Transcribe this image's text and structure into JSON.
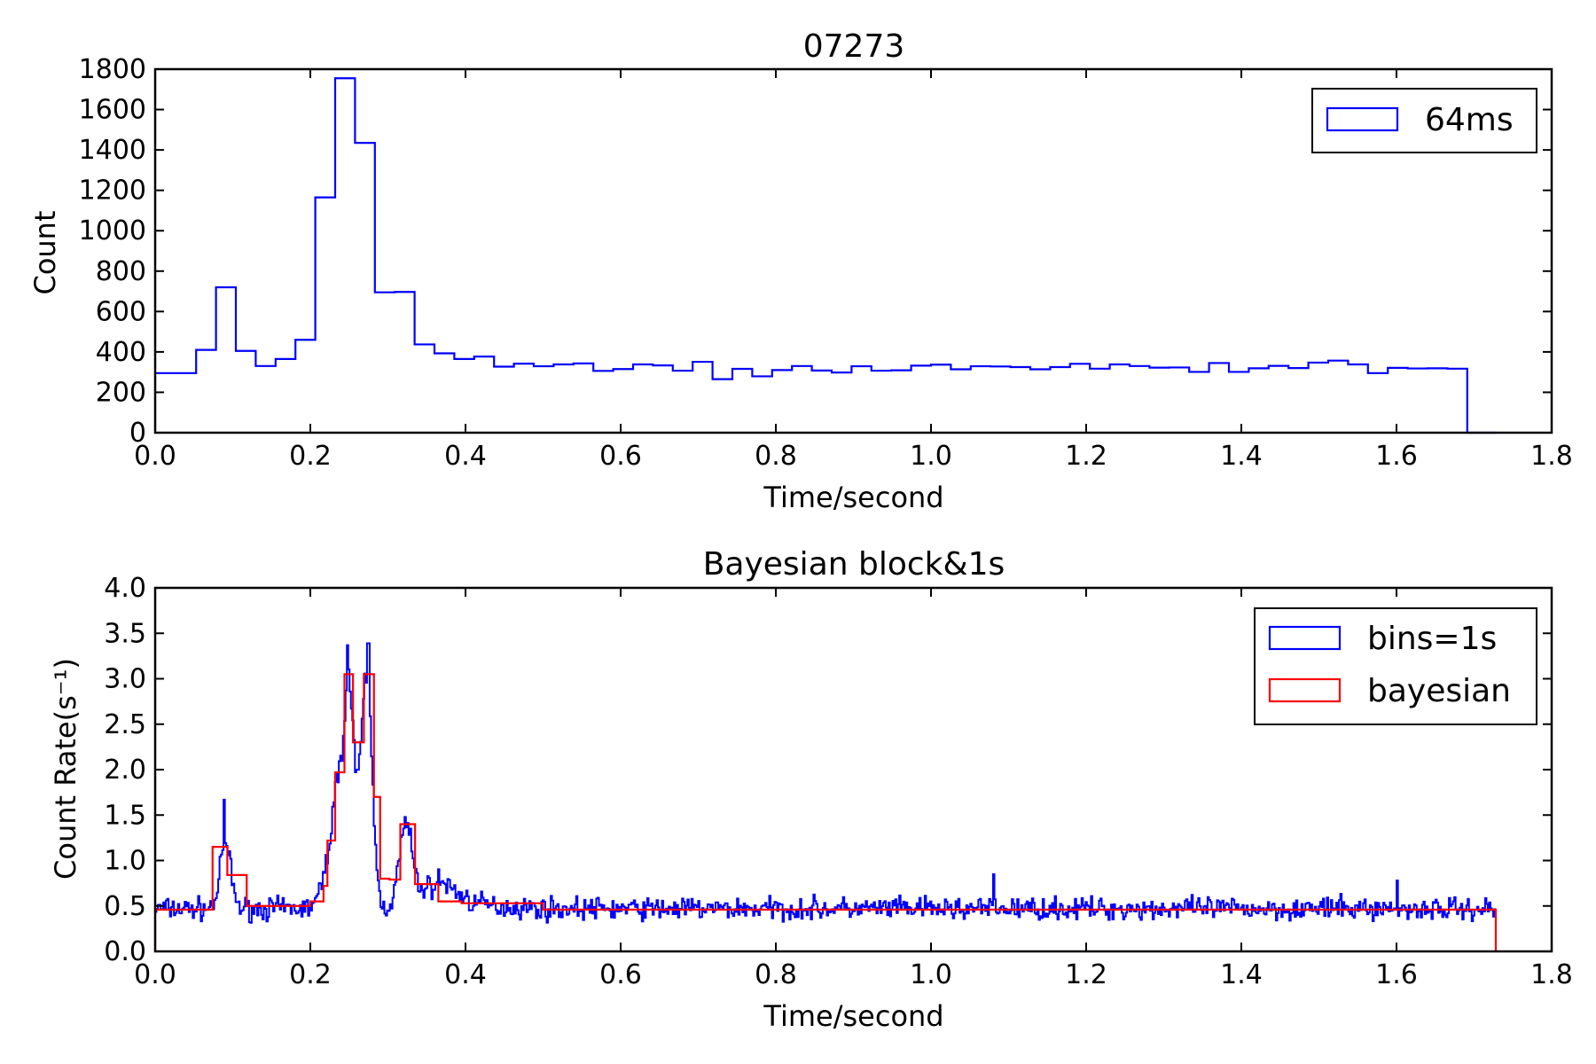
{
  "chart_data": [
    {
      "type": "line",
      "step": "post",
      "title": "07273",
      "xlabel": "Time/second",
      "ylabel": "Count",
      "xlim": [
        0.0,
        1.8
      ],
      "ylim": [
        0,
        1800
      ],
      "xticks": [
        "0.0",
        "0.2",
        "0.4",
        "0.6",
        "0.8",
        "1.0",
        "1.2",
        "1.4",
        "1.6",
        "1.8"
      ],
      "yticks": [
        "0",
        "200",
        "400",
        "600",
        "800",
        "1000",
        "1200",
        "1400",
        "1600",
        "1800"
      ],
      "legend_position": "upper-right",
      "grid": false,
      "series": [
        {
          "name": "64ms",
          "color": "#0000ff",
          "bin_width": 0.0256,
          "end": 1.7288,
          "x": [
            0.0,
            0.0528,
            0.0784,
            0.104,
            0.1296,
            0.1552,
            0.1808,
            0.2064,
            0.232,
            0.2576,
            0.2832,
            0.3088,
            0.3344,
            0.36,
            0.3856,
            0.4112,
            0.4368,
            0.4624,
            0.488,
            0.5136,
            0.5392,
            0.5648,
            0.5904,
            0.616,
            0.6416,
            0.6672,
            0.6928,
            0.7184,
            0.744,
            0.7696,
            0.7952,
            0.8208,
            0.8464,
            0.872,
            0.8976,
            0.9232,
            0.9488,
            0.9744,
            1.0,
            1.0256,
            1.0512,
            1.0768,
            1.1024,
            1.128,
            1.1536,
            1.1792,
            1.2048,
            1.2304,
            1.256,
            1.2816,
            1.3072,
            1.3328,
            1.3584,
            1.384,
            1.4096,
            1.4352,
            1.4608,
            1.4864,
            1.512,
            1.5376,
            1.5632,
            1.5888,
            1.6144,
            1.64,
            1.6656,
            1.6912
          ],
          "y": [
            295,
            410,
            720,
            405,
            330,
            365,
            460,
            1165,
            1755,
            1435,
            695,
            697,
            437,
            393,
            365,
            377,
            327,
            342,
            329,
            338,
            343,
            306,
            315,
            338,
            333,
            307,
            351,
            265,
            316,
            279,
            310,
            330,
            308,
            298,
            329,
            307,
            309,
            332,
            337,
            314,
            329,
            328,
            325,
            314,
            325,
            341,
            317,
            338,
            330,
            322,
            323,
            301,
            345,
            301,
            319,
            331,
            320,
            347,
            357,
            338,
            295,
            321,
            318,
            319,
            317,
            0
          ]
        }
      ]
    },
    {
      "type": "line",
      "step": "post",
      "title": "Bayesian block&1s",
      "xlabel": "Time/second",
      "ylabel": "Count Rate(s⁻¹)",
      "xlim": [
        0.0,
        1.8
      ],
      "ylim": [
        0.0,
        4.0
      ],
      "xticks": [
        "0.0",
        "0.2",
        "0.4",
        "0.6",
        "0.8",
        "1.0",
        "1.2",
        "1.4",
        "1.6",
        "1.8"
      ],
      "yticks": [
        "0.0",
        "0.5",
        "1.0",
        "1.5",
        "2.0",
        "2.5",
        "3.0",
        "3.5",
        "4.0"
      ],
      "legend_position": "upper-right",
      "grid": false,
      "series": [
        {
          "name": "bins=1s",
          "color": "#0000ff",
          "x_start": 0.0,
          "x_end": 1.728,
          "peaks": [
            {
              "center": 0.09,
              "amplitude": 0.68,
              "sigma": 0.007
            },
            {
              "center": 0.24,
              "amplitude": 1.5,
              "sigma": 0.014
            },
            {
              "center": 0.272,
              "amplitude": 2.45,
              "sigma": 0.007
            },
            {
              "center": 0.25,
              "amplitude": 1.3,
              "sigma": 0.006
            },
            {
              "center": 0.322,
              "amplitude": 0.85,
              "sigma": 0.008
            },
            {
              "center": 0.36,
              "amplitude": 0.25,
              "sigma": 0.025
            }
          ],
          "baseline": 0.47,
          "noise_amplitude": 0.12,
          "notable_spikes": [
            {
              "x": 0.088,
              "y": 1.67
            },
            {
              "x": 0.247,
              "y": 3.37
            },
            {
              "x": 0.274,
              "y": 3.39
            },
            {
              "x": 1.08,
              "y": 0.85
            },
            {
              "x": 1.6,
              "y": 0.78
            }
          ]
        },
        {
          "name": "bayesian",
          "color": "#ff0000",
          "end": 1.728,
          "x": [
            0.0,
            0.074,
            0.093,
            0.11,
            0.118,
            0.2,
            0.217,
            0.222,
            0.232,
            0.244,
            0.255,
            0.269,
            0.282,
            0.29,
            0.302,
            0.316,
            0.335,
            0.365,
            0.395,
            0.5
          ],
          "y": [
            0.46,
            1.15,
            0.84,
            0.84,
            0.5,
            0.55,
            0.72,
            1.22,
            1.97,
            3.05,
            2.3,
            3.05,
            1.7,
            0.8,
            0.79,
            1.4,
            0.74,
            0.55,
            0.53,
            0.46
          ]
        }
      ]
    }
  ]
}
